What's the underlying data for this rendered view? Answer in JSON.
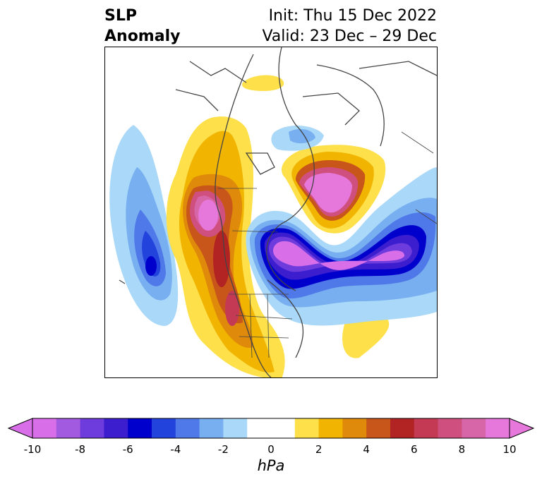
{
  "title": {
    "left_line1": "SLP",
    "left_line2": "Anomaly",
    "right_line1": "Init: Thu 15 Dec 2022",
    "right_line2": "Valid: 23 Dec – 29 Dec"
  },
  "colorbar": {
    "units": "hPa",
    "ticks": [
      "-10",
      "-8",
      "-6",
      "-4",
      "-2",
      "0",
      "2",
      "4",
      "6",
      "8",
      "10"
    ],
    "colors": [
      "#d86ee8",
      "#a25ae0",
      "#6e3cdc",
      "#3c1ecf",
      "#0000cc",
      "#2344dc",
      "#4f78e8",
      "#78aff0",
      "#aad8f8",
      "#ffffff",
      "#ffffff",
      "#fde04a",
      "#f1b400",
      "#df8a0a",
      "#c8561a",
      "#b22424",
      "#c43a55",
      "#cf4f7e",
      "#d766a8",
      "#e678dc"
    ]
  },
  "legend_colors": {
    "neg_extreme": "#d86ee8",
    "neg_strong": "#0000cc",
    "neg_light": "#aad8f8",
    "pos_light": "#fde04a",
    "pos_mid": "#df8a0a",
    "pos_strong": "#b22424",
    "pos_extreme": "#e678dc"
  }
}
